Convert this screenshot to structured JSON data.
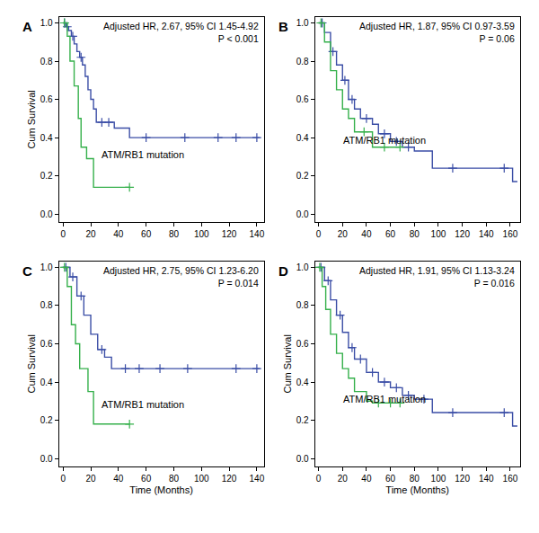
{
  "chart_data": [
    {
      "type": "line",
      "title": "A",
      "annotations": [
        "Adjusted HR, 2.67, 95% CI 1.45-4.92",
        "P < 0.001"
      ],
      "y_label": "Cum Survival",
      "xlim": [
        -3,
        145
      ],
      "xticks": [
        0,
        20,
        40,
        60,
        80,
        100,
        120,
        140
      ],
      "ylim": [
        -0.04,
        1.03
      ],
      "yticks": [
        {
          "value": 0,
          "label": "0.0"
        },
        {
          "value": 0.2,
          "label": "0.2"
        },
        {
          "value": 0.4,
          "label": "0.4"
        },
        {
          "value": 0.6,
          "label": "0.6"
        },
        {
          "value": 0.8,
          "label": "0.8"
        },
        {
          "value": 1,
          "label": "1.0"
        }
      ],
      "grid": false,
      "series": [
        {
          "color": "#3b4ea6",
          "line_style": "step",
          "marker": "cross",
          "x": [
            0,
            2,
            4,
            6,
            8,
            10,
            12,
            14,
            16,
            18,
            20,
            22,
            24,
            37,
            48,
            142
          ],
          "values": [
            1,
            0.98,
            0.96,
            0.93,
            0.89,
            0.85,
            0.82,
            0.78,
            0.72,
            0.65,
            0.6,
            0.55,
            0.48,
            0.45,
            0.4,
            0.4
          ],
          "censor_x": [
            1,
            3,
            7,
            13,
            28,
            33,
            60,
            88,
            112,
            125,
            140
          ],
          "censor_y": [
            1,
            0.98,
            0.93,
            0.82,
            0.48,
            0.48,
            0.4,
            0.4,
            0.4,
            0.4,
            0.4
          ]
        },
        {
          "name": "ATM/RB1 mutation",
          "color": "#35b04b",
          "line_style": "step",
          "marker": "cross",
          "x": [
            0,
            3,
            5,
            8,
            11,
            13,
            17,
            22,
            48
          ],
          "values": [
            1,
            0.93,
            0.8,
            0.67,
            0.5,
            0.35,
            0.29,
            0.14,
            0.14
          ],
          "censor_x": [
            1,
            48
          ],
          "censor_y": [
            1,
            0.14
          ]
        }
      ]
    },
    {
      "type": "line",
      "title": "B",
      "annotations": [
        "Adjusted HR, 1.87, 95% CI 0.97-3.59",
        "P = 0.06"
      ],
      "xlim": [
        -3,
        168
      ],
      "xticks": [
        0,
        20,
        40,
        60,
        80,
        100,
        120,
        140,
        160
      ],
      "ylim": [
        -0.04,
        1.03
      ],
      "yticks": [
        {
          "value": 0,
          "label": "0.0"
        },
        {
          "value": 0.2,
          "label": "0.2"
        },
        {
          "value": 0.4,
          "label": "0.4"
        },
        {
          "value": 0.6,
          "label": "0.6"
        },
        {
          "value": 0.8,
          "label": "0.8"
        },
        {
          "value": 1,
          "label": "1.0"
        }
      ],
      "grid": false,
      "series": [
        {
          "color": "#3b4ea6",
          "line_style": "step",
          "marker": "cross",
          "x": [
            0,
            5,
            10,
            15,
            20,
            25,
            30,
            35,
            45,
            50,
            60,
            70,
            80,
            95,
            162,
            166
          ],
          "values": [
            1,
            0.95,
            0.85,
            0.78,
            0.7,
            0.6,
            0.55,
            0.5,
            0.47,
            0.42,
            0.38,
            0.35,
            0.33,
            0.24,
            0.17,
            0.17
          ],
          "censor_x": [
            3,
            12,
            22,
            28,
            40,
            55,
            65,
            75,
            112,
            155
          ],
          "censor_y": [
            1,
            0.85,
            0.7,
            0.6,
            0.5,
            0.42,
            0.38,
            0.35,
            0.24,
            0.24
          ]
        },
        {
          "name": "ATM/RB1 mutation",
          "color": "#35b04b",
          "line_style": "step",
          "marker": "cross",
          "x": [
            0,
            5,
            10,
            15,
            20,
            25,
            30,
            45,
            68
          ],
          "values": [
            1,
            0.9,
            0.75,
            0.65,
            0.55,
            0.5,
            0.43,
            0.35,
            0.35
          ],
          "censor_x": [
            2,
            38,
            55,
            68
          ],
          "censor_y": [
            1,
            0.43,
            0.35,
            0.35
          ]
        }
      ]
    },
    {
      "type": "line",
      "title": "C",
      "annotations": [
        "Adjusted HR, 2.75, 95% CI 1.23-6.20",
        "P = 0.014"
      ],
      "x_label": "Time (Months)",
      "y_label": "Cum Survival",
      "xlim": [
        -3,
        145
      ],
      "xticks": [
        0,
        20,
        40,
        60,
        80,
        100,
        120,
        140
      ],
      "ylim": [
        -0.04,
        1.03
      ],
      "yticks": [
        {
          "value": 0,
          "label": "0.0"
        },
        {
          "value": 0.2,
          "label": "0.2"
        },
        {
          "value": 0.4,
          "label": "0.4"
        },
        {
          "value": 0.6,
          "label": "0.6"
        },
        {
          "value": 0.8,
          "label": "0.8"
        },
        {
          "value": 1,
          "label": "1.0"
        }
      ],
      "grid": false,
      "series": [
        {
          "color": "#3b4ea6",
          "line_style": "step",
          "marker": "cross",
          "x": [
            0,
            5,
            10,
            15,
            20,
            25,
            30,
            35,
            142
          ],
          "values": [
            1,
            0.95,
            0.85,
            0.75,
            0.65,
            0.57,
            0.53,
            0.47,
            0.47
          ],
          "censor_x": [
            2,
            7,
            13,
            28,
            45,
            55,
            70,
            90,
            125,
            140
          ],
          "censor_y": [
            1,
            0.95,
            0.85,
            0.57,
            0.47,
            0.47,
            0.47,
            0.47,
            0.47,
            0.47
          ]
        },
        {
          "name": "ATM/RB1 mutation",
          "color": "#35b04b",
          "line_style": "step",
          "marker": "cross",
          "x": [
            0,
            3,
            6,
            9,
            12,
            18,
            22,
            48
          ],
          "values": [
            1,
            0.9,
            0.7,
            0.6,
            0.47,
            0.35,
            0.18,
            0.18
          ],
          "censor_x": [
            1,
            48
          ],
          "censor_y": [
            1,
            0.18
          ]
        }
      ]
    },
    {
      "type": "line",
      "title": "D",
      "annotations": [
        "Adjusted HR, 1.91, 95% CI 1.13-3.24",
        "P = 0.016"
      ],
      "x_label": "Time (Months)",
      "y_label": "Cum Survival",
      "xlim": [
        -3,
        168
      ],
      "xticks": [
        0,
        20,
        40,
        60,
        80,
        100,
        120,
        140,
        160
      ],
      "ylim": [
        -0.04,
        1.03
      ],
      "yticks": [
        {
          "value": 0,
          "label": "0.0"
        },
        {
          "value": 0.2,
          "label": "0.2"
        },
        {
          "value": 0.4,
          "label": "0.4"
        },
        {
          "value": 0.6,
          "label": "0.6"
        },
        {
          "value": 0.8,
          "label": "0.8"
        },
        {
          "value": 1,
          "label": "1.0"
        }
      ],
      "grid": false,
      "series": [
        {
          "color": "#3b4ea6",
          "line_style": "step",
          "marker": "cross",
          "x": [
            0,
            5,
            10,
            15,
            20,
            25,
            30,
            40,
            50,
            60,
            70,
            80,
            95,
            162,
            166
          ],
          "values": [
            1,
            0.93,
            0.83,
            0.75,
            0.66,
            0.58,
            0.52,
            0.45,
            0.4,
            0.37,
            0.33,
            0.31,
            0.24,
            0.17,
            0.17
          ],
          "censor_x": [
            2,
            8,
            18,
            28,
            35,
            45,
            55,
            65,
            75,
            88,
            112,
            155
          ],
          "censor_y": [
            1,
            0.93,
            0.75,
            0.58,
            0.52,
            0.45,
            0.4,
            0.37,
            0.33,
            0.31,
            0.24,
            0.24
          ]
        },
        {
          "name": "ATM/RB1 mutation",
          "color": "#35b04b",
          "line_style": "step",
          "marker": "cross",
          "x": [
            0,
            3,
            6,
            10,
            15,
            20,
            25,
            30,
            40,
            45,
            68
          ],
          "values": [
            1,
            0.9,
            0.78,
            0.65,
            0.55,
            0.47,
            0.42,
            0.35,
            0.3,
            0.29,
            0.29
          ],
          "censor_x": [
            1,
            50,
            60,
            68
          ],
          "censor_y": [
            1,
            0.29,
            0.29,
            0.29
          ]
        }
      ]
    }
  ]
}
